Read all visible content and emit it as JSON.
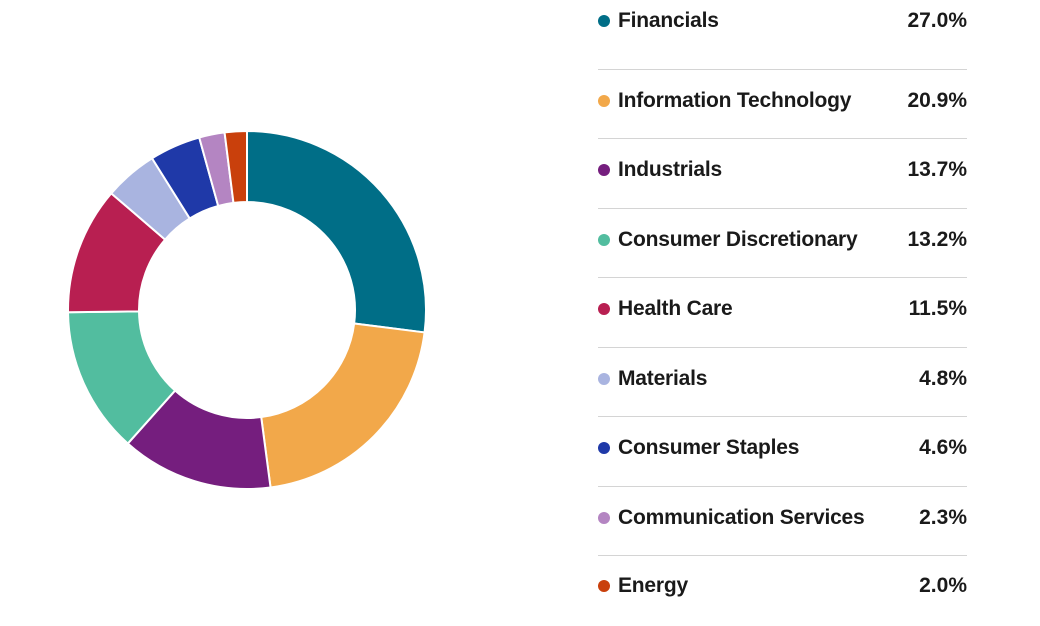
{
  "chart_data": {
    "type": "pie",
    "categories": [
      "Financials",
      "Information Technology",
      "Industrials",
      "Consumer Discretionary",
      "Health Care",
      "Materials",
      "Consumer Staples",
      "Communication Services",
      "Energy"
    ],
    "values": [
      27.0,
      20.9,
      13.7,
      13.2,
      11.5,
      4.8,
      4.6,
      2.3,
      2.0
    ],
    "value_labels": [
      "27.0%",
      "20.9%",
      "13.7%",
      "13.2%",
      "11.5%",
      "4.8%",
      "4.6%",
      "2.3%",
      "2.0%"
    ],
    "colors": [
      "#006e87",
      "#f2a84a",
      "#751e7e",
      "#52bd9f",
      "#b81f51",
      "#a9b4e0",
      "#1f39a8",
      "#b485c2",
      "#c9400c"
    ],
    "style": "donut",
    "legend_position": "right"
  }
}
